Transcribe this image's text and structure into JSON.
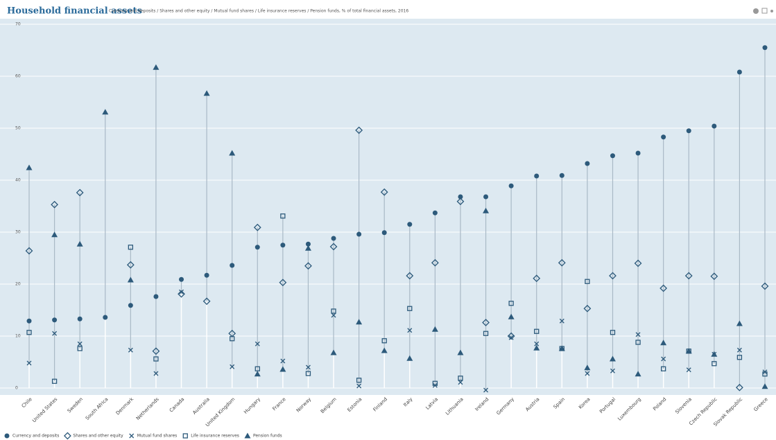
{
  "chart_data": {
    "type": "dot",
    "title": "Household financial assets",
    "subtitle": "Currency and deposits / Shares and other equity / Mutual fund shares / Life insurance reserves / Pension funds, % of total financial assets, 2016",
    "categories": [
      "Chile",
      "United States",
      "Sweden",
      "South Africa",
      "Denmark",
      "Netherlands",
      "Canada",
      "Australia",
      "United Kingdom",
      "Hungary",
      "France",
      "Norway",
      "Belgium",
      "Estonia",
      "Finland",
      "Italy",
      "Latvia",
      "Lithuania",
      "Ireland",
      "Germany",
      "Austria",
      "Spain",
      "Korea",
      "Portugal",
      "Luxembourg",
      "Poland",
      "Slovenia",
      "Czech Republic",
      "Slovak Republic",
      "Greece"
    ],
    "series": [
      {
        "name": "Currency and deposits",
        "color": "#2d5a7b",
        "marker": "circle",
        "values": [
          12.9,
          13.1,
          13.3,
          13.6,
          15.9,
          17.6,
          20.9,
          21.7,
          23.6,
          27.1,
          27.5,
          27.7,
          28.8,
          29.6,
          29.9,
          31.5,
          33.7,
          36.8,
          36.8,
          38.9,
          40.8,
          40.9,
          43.2,
          44.7,
          45.2,
          48.3,
          49.5,
          50.4,
          60.8,
          65.5
        ]
      },
      {
        "name": "Shares and other equity",
        "color": "#2d5a7b",
        "marker": "diamond",
        "values": [
          26.4,
          35.3,
          37.6,
          null,
          23.7,
          7.1,
          18.1,
          16.7,
          10.5,
          30.9,
          20.3,
          23.5,
          27.2,
          49.6,
          37.7,
          21.6,
          24.1,
          35.9,
          12.6,
          10,
          21.1,
          24.1,
          15.3,
          21.6,
          24,
          19.2,
          21.6,
          21.5,
          0.1,
          19.6
        ]
      },
      {
        "name": "Mutual fund shares",
        "color": "#2d5a7b",
        "marker": "cross",
        "values": [
          4.8,
          10.5,
          8.5,
          null,
          7.3,
          2.8,
          18.5,
          null,
          4.1,
          8.5,
          5.2,
          4,
          14,
          0.4,
          null,
          11.1,
          0.5,
          1.1,
          -0.4,
          9.7,
          8.5,
          12.9,
          2.8,
          3.3,
          10.3,
          5.6,
          3.5,
          6.5,
          7.3,
          3.1
        ]
      },
      {
        "name": "Life insurance reserves",
        "color": "#2d5a7b",
        "marker": "square",
        "values": [
          10.7,
          1.3,
          7.6,
          null,
          27.1,
          5.6,
          null,
          null,
          9.5,
          3.7,
          33.1,
          2.8,
          14.8,
          1.5,
          9.1,
          15.3,
          0.9,
          1.9,
          10.5,
          16.3,
          10.9,
          7.6,
          20.5,
          10.7,
          8.8,
          3.7,
          7.1,
          4.7,
          5.9,
          2.7
        ]
      },
      {
        "name": "Pension funds",
        "color": "#2d5a7b",
        "marker": "triangle",
        "values": [
          42.4,
          29.5,
          27.7,
          53.1,
          20.8,
          61.7,
          null,
          56.7,
          45.2,
          2.7,
          3.6,
          26.9,
          6.8,
          12.7,
          7.2,
          5.7,
          11.3,
          6.8,
          34.1,
          13.7,
          7.7,
          7.6,
          3.9,
          5.6,
          2.7,
          8.7,
          7.1,
          6.5,
          12.4,
          0.3
        ]
      }
    ],
    "ylim": [
      0,
      70
    ],
    "yticks": [
      0,
      10,
      20,
      30,
      40,
      50,
      60,
      70
    ],
    "grid": true
  }
}
